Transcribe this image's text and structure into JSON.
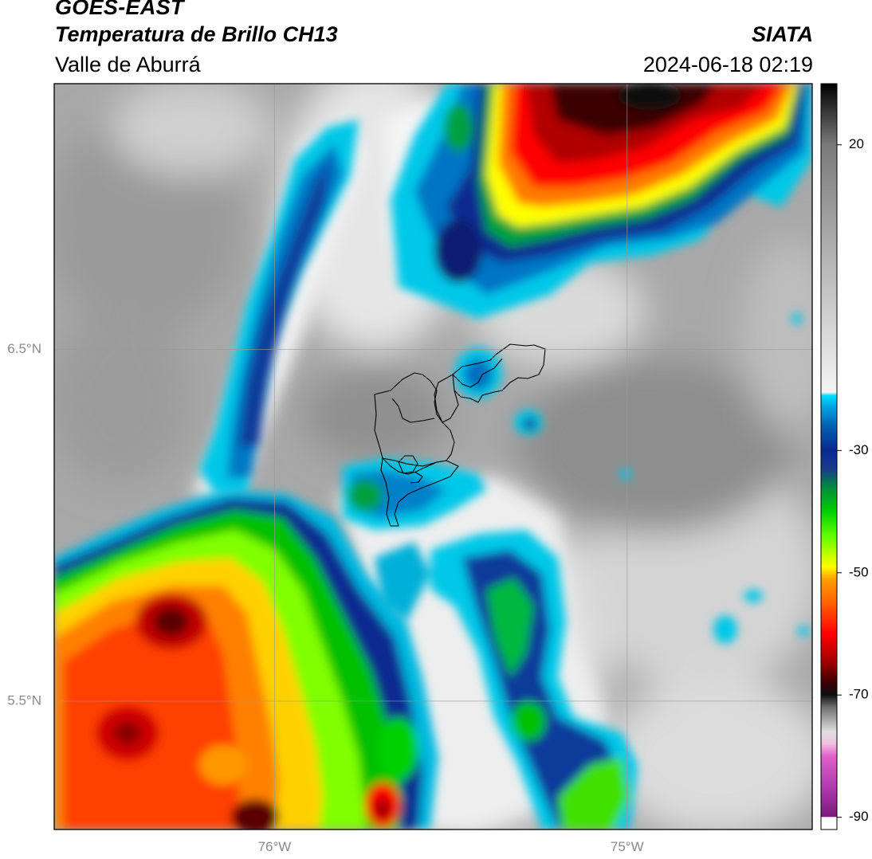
{
  "header": {
    "satellite": "GOES-EAST",
    "product": "Temperatura de Brillo CH13",
    "region": "Valle de Aburrá",
    "organization": "SIATA",
    "timestamp": "2024-06-18 02:19"
  },
  "map": {
    "lat_ticks": [
      {
        "value": 6.5,
        "label": "6.5°N"
      },
      {
        "value": 5.5,
        "label": "5.5°N"
      }
    ],
    "lon_ticks": [
      {
        "value": -76,
        "label": "76°W"
      },
      {
        "value": -75,
        "label": "75°W"
      }
    ],
    "lon_range": [
      -76.625,
      -74.475
    ],
    "lat_range": [
      5.135,
      7.255
    ]
  },
  "colorbar": {
    "ticks": [
      {
        "value": 20,
        "label": "20"
      },
      {
        "value": -30,
        "label": "-30"
      },
      {
        "value": -50,
        "label": "-50"
      },
      {
        "value": -70,
        "label": "-70"
      },
      {
        "value": -90,
        "label": "-90"
      }
    ],
    "range": [
      -92,
      30
    ],
    "stops": [
      {
        "value": -92,
        "color": "#ffffff"
      },
      {
        "value": -90,
        "color": "#ffffff"
      },
      {
        "value": -89.9,
        "color": "#7a1a7a"
      },
      {
        "value": -85,
        "color": "#b03cb0"
      },
      {
        "value": -80,
        "color": "#e060c8"
      },
      {
        "value": -78,
        "color": "#f0c0e0"
      },
      {
        "value": -76,
        "color": "#e0e0e0"
      },
      {
        "value": -72,
        "color": "#707070"
      },
      {
        "value": -70,
        "color": "#101010"
      },
      {
        "value": -68,
        "color": "#3a0000"
      },
      {
        "value": -64,
        "color": "#b00000"
      },
      {
        "value": -60,
        "color": "#ff0000"
      },
      {
        "value": -55,
        "color": "#ff6000"
      },
      {
        "value": -51,
        "color": "#ffa000"
      },
      {
        "value": -49,
        "color": "#ffff00"
      },
      {
        "value": -44,
        "color": "#60ff00"
      },
      {
        "value": -40,
        "color": "#00d000"
      },
      {
        "value": -36,
        "color": "#008a40"
      },
      {
        "value": -33,
        "color": "#1a3a8a"
      },
      {
        "value": -30,
        "color": "#0a2a90"
      },
      {
        "value": -26,
        "color": "#0060b0"
      },
      {
        "value": -23,
        "color": "#00a0e0"
      },
      {
        "value": -21,
        "color": "#00e0ff"
      },
      {
        "value": -20.5,
        "color": "#f4f4f4"
      },
      {
        "value": 0,
        "color": "#b8b8b8"
      },
      {
        "value": 20,
        "color": "#7a7a7a"
      },
      {
        "value": 30,
        "color": "#000000"
      }
    ]
  }
}
